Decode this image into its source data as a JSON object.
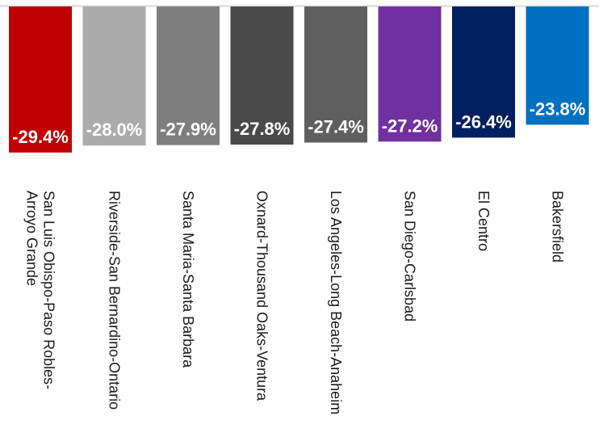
{
  "chart_data": {
    "type": "bar",
    "orientation": "vertical-downward",
    "title": "",
    "xlabel": "",
    "ylabel": "",
    "grid": false,
    "legend": "none",
    "categories": [
      "San Luis Obispo-Paso Robles-Arroyo Grande",
      "Riverside-San Bernardino-Ontario",
      "Santa Maria-Santa Barbara",
      "Oxnard-Thousand Oaks-Ventura",
      "Los Angeles-Long Beach-Anaheim",
      "San Diego-Carlsbad",
      "El Centro",
      "Bakersfield"
    ],
    "category_lines": [
      [
        "San Luis Obispo-Paso Robles-",
        "Arroyo Grande"
      ],
      [
        "Riverside-San Bernardino-Ontario"
      ],
      [
        "Santa Maria-Santa Barbara"
      ],
      [
        "Oxnard-Thousand Oaks-Ventura"
      ],
      [
        "Los Angeles-Long Beach-Anaheim"
      ],
      [
        "San Diego-Carlsbad"
      ],
      [
        "El Centro"
      ],
      [
        "Bakersfield"
      ]
    ],
    "values": [
      -29.4,
      -28.0,
      -27.9,
      -27.8,
      -27.4,
      -27.2,
      -26.4,
      -23.8
    ],
    "data_labels": [
      "-29.4%",
      "-28.0%",
      "-27.9%",
      "-27.8%",
      "-27.4%",
      "-27.2%",
      "-26.4%",
      "-23.8%"
    ],
    "colors": [
      "#c00000",
      "#ababab",
      "#7f7f7f",
      "#4a4a4a",
      "#5f5f5f",
      "#7030a0",
      "#002060",
      "#0070c0"
    ],
    "ylim": [
      -31,
      0
    ]
  }
}
